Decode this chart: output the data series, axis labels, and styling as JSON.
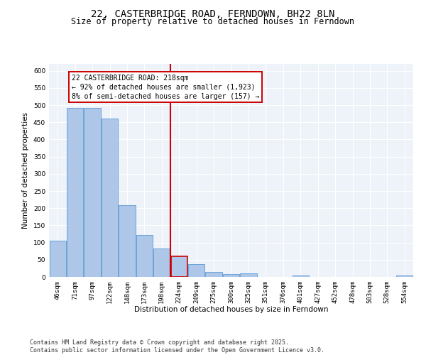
{
  "title": "22, CASTERBRIDGE ROAD, FERNDOWN, BH22 8LN",
  "subtitle": "Size of property relative to detached houses in Ferndown",
  "xlabel": "Distribution of detached houses by size in Ferndown",
  "ylabel": "Number of detached properties",
  "categories": [
    "46sqm",
    "71sqm",
    "97sqm",
    "122sqm",
    "148sqm",
    "173sqm",
    "198sqm",
    "224sqm",
    "249sqm",
    "275sqm",
    "300sqm",
    "325sqm",
    "351sqm",
    "376sqm",
    "401sqm",
    "427sqm",
    "452sqm",
    "478sqm",
    "503sqm",
    "528sqm",
    "554sqm"
  ],
  "values": [
    106,
    491,
    491,
    460,
    208,
    122,
    83,
    59,
    38,
    15,
    8,
    11,
    0,
    0,
    5,
    0,
    0,
    0,
    0,
    0,
    5
  ],
  "bar_color": "#aec6e8",
  "bar_edge_color": "#5b9bd5",
  "highlight_line_color": "#cc0000",
  "annotation_text": "22 CASTERBRIDGE ROAD: 218sqm\n← 92% of detached houses are smaller (1,923)\n8% of semi-detached houses are larger (157) →",
  "annotation_box_color": "#cc0000",
  "ylim": [
    0,
    620
  ],
  "yticks": [
    0,
    50,
    100,
    150,
    200,
    250,
    300,
    350,
    400,
    450,
    500,
    550,
    600
  ],
  "footer_text": "Contains HM Land Registry data © Crown copyright and database right 2025.\nContains public sector information licensed under the Open Government Licence v3.0.",
  "background_color": "#eef2f9",
  "grid_color": "#ffffff",
  "title_fontsize": 10,
  "subtitle_fontsize": 8.5,
  "axis_label_fontsize": 7.5,
  "tick_fontsize": 6.5,
  "annotation_fontsize": 7,
  "footer_fontsize": 6
}
